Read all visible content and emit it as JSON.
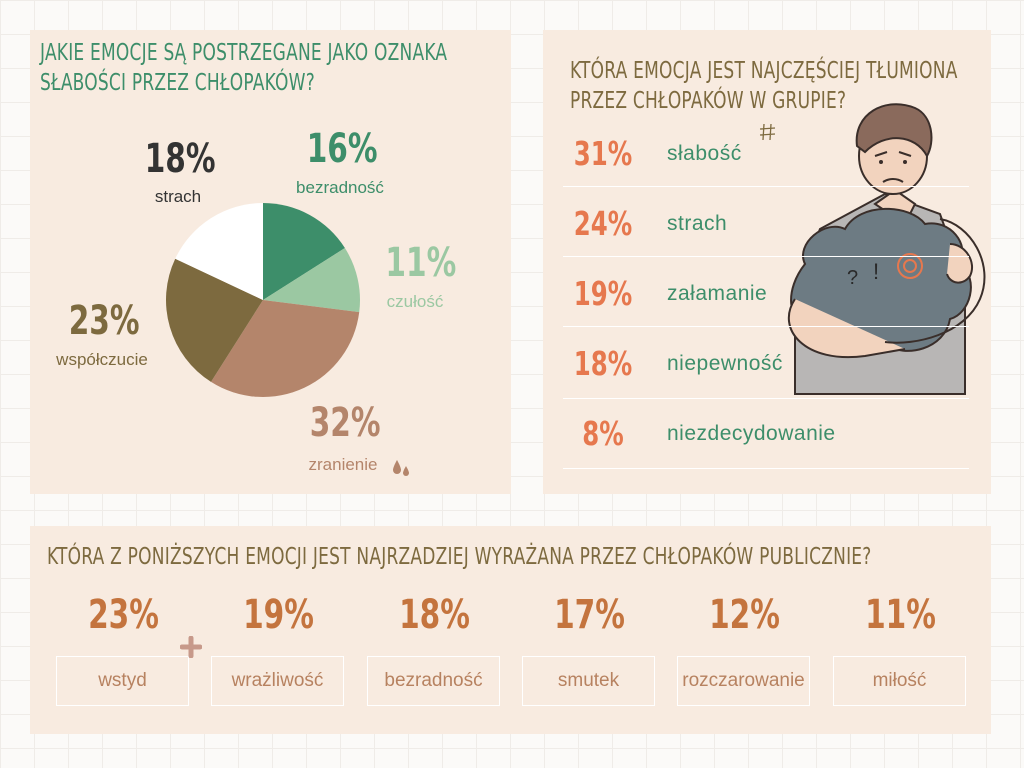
{
  "panel1": {
    "title_line1": "JAKIE EMOCJE SĄ POSTRZEGANE JAKO OZNAKA",
    "title_line2": "SŁABOŚCI PRZEZ CHŁOPAKÓW?"
  },
  "panel2": {
    "title_line1": "KTÓRA EMOCJA JEST NAJCZĘŚCIEJ TŁUMIONA",
    "title_line2": "PRZEZ CHŁOPAKÓW W GRUPIE?",
    "items": [
      {
        "pct": "31%",
        "label": "słabość"
      },
      {
        "pct": "24%",
        "label": "strach"
      },
      {
        "pct": "19%",
        "label": "załamanie"
      },
      {
        "pct": "18%",
        "label": "niepewność"
      },
      {
        "pct": "8%",
        "label": "niezdecydowanie"
      }
    ]
  },
  "panel3": {
    "title": "KTÓRA Z PONIŻSZYCH EMOCJI JEST NAJRZADZIEJ WYRAŻANA PRZEZ CHŁOPAKÓW PUBLICZNIE?",
    "items": [
      {
        "pct": "23%",
        "label": "wstyd"
      },
      {
        "pct": "19%",
        "label": "wrażliwość"
      },
      {
        "pct": "18%",
        "label": "bezradność"
      },
      {
        "pct": "17%",
        "label": "smutek"
      },
      {
        "pct": "12%",
        "label": "rozczarowanie"
      },
      {
        "pct": "11%",
        "label": "miłość"
      }
    ]
  },
  "chart_data": [
    {
      "type": "pie",
      "title": "JAKIE EMOCJE SĄ POSTRZEGANE JAKO OZNAKA SŁABOŚCI PRZEZ CHŁOPAKÓW?",
      "categories": [
        "bezradność",
        "czułość",
        "zranienie",
        "współczucie",
        "strach"
      ],
      "values": [
        16,
        11,
        32,
        23,
        18
      ],
      "labels": [
        "16%",
        "11%",
        "32%",
        "23%",
        "18%"
      ],
      "colors": [
        "#3d8e6a",
        "#9bc8a2",
        "#b4856b",
        "#7d6a3f",
        "#ffffff"
      ],
      "label_colors": [
        "#3d8e6a",
        "#9bc8a2",
        "#b4856b",
        "#7d6a3f",
        "#333333"
      ]
    },
    {
      "type": "table",
      "title": "KTÓRA EMOCJA JEST NAJCZĘŚCIEJ TŁUMIONA PRZEZ CHŁOPAKÓW W GRUPIE?",
      "categories": [
        "słabość",
        "strach",
        "załamanie",
        "niepewność",
        "niezdecydowanie"
      ],
      "values": [
        31,
        24,
        19,
        18,
        8
      ]
    },
    {
      "type": "table",
      "title": "KTÓRA Z PONIŻSZYCH EMOCJI JEST NAJRZADZIEJ WYRAŻANA PRZEZ CHŁOPAKÓW PUBLICZNIE?",
      "categories": [
        "wstyd",
        "wrażliwość",
        "bezradność",
        "smutek",
        "rozczarowanie",
        "miłość"
      ],
      "values": [
        23,
        19,
        18,
        17,
        12,
        11
      ]
    }
  ]
}
